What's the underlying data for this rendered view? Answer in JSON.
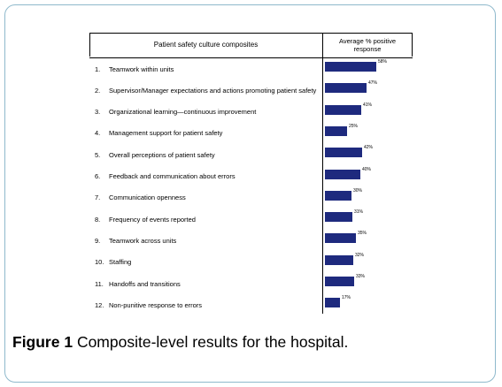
{
  "header": {
    "col1": "Patient safety culture composites",
    "col2_line1": "Average % positive",
    "col2_line2": "response"
  },
  "chart_data": {
    "type": "bar",
    "orientation": "horizontal",
    "categories": [
      "Teamwork within units",
      "Supervisor/Manager expectations and actions promoting patient safety",
      "Organizational learning—continuous improvement",
      "Management support for patient safety",
      "Overall perceptions of patient safety",
      "Feedback and communication about errors",
      "Communication openness",
      "Frequency of events reported",
      "Teamwork across units",
      "Staffing",
      "Handoffs and transitions",
      "Non-punitive response to errors"
    ],
    "numbers": [
      "1.",
      "2.",
      "3.",
      "4.",
      "5.",
      "6.",
      "7.",
      "8.",
      "9.",
      "10.",
      "11.",
      "12."
    ],
    "values": [
      58,
      47,
      41,
      25,
      42,
      40,
      30,
      31,
      35,
      32,
      33,
      17
    ],
    "value_labels": [
      "58%",
      "47%",
      "41%",
      "25%",
      "42%",
      "40%",
      "30%",
      "31%",
      "35%",
      "32%",
      "33%",
      "17%"
    ],
    "bar_color": "#1e2a7e"
  },
  "caption": {
    "label": "Figure 1",
    "text": " Composite-level results for the hospital."
  }
}
